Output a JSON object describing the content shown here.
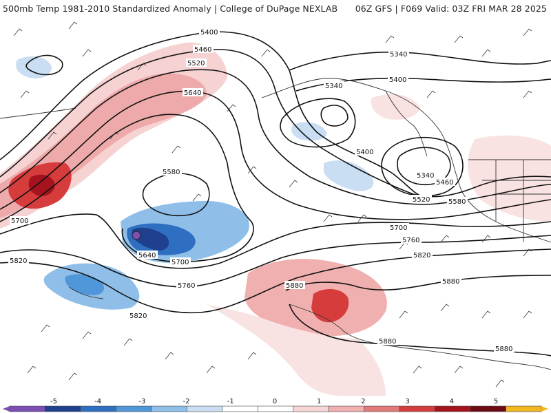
{
  "header": {
    "left_title": "500mb Temp 1981-2010 Standardized Anomaly | College of DuPage NEXLAB",
    "right_title": "06Z GFS | F069 Valid: 03Z FRI MAR 28 2025"
  },
  "contour_labels": [
    "5400",
    "5460",
    "5520",
    "5640",
    "5580",
    "5700",
    "5640",
    "5700",
    "5820",
    "5760",
    "5820",
    "5340",
    "5400",
    "5340",
    "5340",
    "5400",
    "5460",
    "5520",
    "5580",
    "5700",
    "5760",
    "5820",
    "5880",
    "5880",
    "5880",
    "5880"
  ],
  "colorbar": {
    "ticks": [
      "-5",
      "-4",
      "-3",
      "-2",
      "-1",
      "0",
      "1",
      "2",
      "3",
      "4",
      "5"
    ],
    "colors": [
      "#7b4fb3",
      "#1f3f8f",
      "#2f6fc2",
      "#4f97d9",
      "#8fbfe8",
      "#c9def2",
      "#ffffff",
      "#ffffff",
      "#f7d6d6",
      "#f0b0b0",
      "#e27a7a",
      "#d43d3d",
      "#a5141e",
      "#6e0b12",
      "#f2b720"
    ],
    "colors_meaning": "color scale from -5 to 5 standard deviations"
  }
}
